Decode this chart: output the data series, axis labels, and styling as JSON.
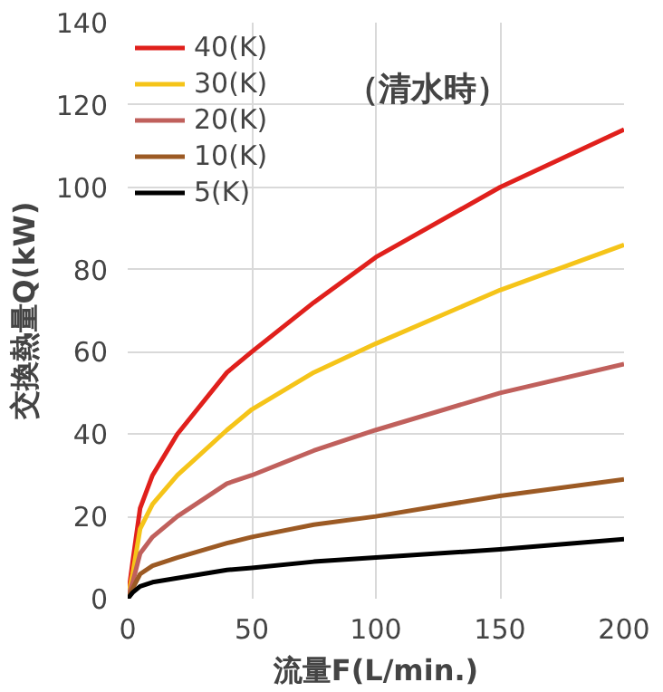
{
  "chart_data": {
    "type": "line",
    "xlabel": "流量F(L/min.)",
    "ylabel": "交換熱量Q(kW)",
    "annotations": [
      "（清水時）"
    ],
    "xlim": [
      0,
      200
    ],
    "xticks": [
      0,
      50,
      100,
      150,
      200
    ],
    "ylim": [
      0,
      140
    ],
    "yticks": [
      0,
      20,
      40,
      60,
      80,
      100,
      120,
      140
    ],
    "grid": true,
    "legend": "top left",
    "x": [
      0,
      2,
      5,
      10,
      20,
      40,
      50,
      75,
      100,
      150,
      200
    ],
    "series": [
      {
        "name": "40(K)",
        "color": "#e0201c",
        "values": [
          0,
          9,
          22,
          30,
          40,
          55,
          60,
          72,
          83,
          100,
          114
        ]
      },
      {
        "name": "30(K)",
        "color": "#f5c419",
        "values": [
          0,
          6,
          17,
          23,
          30,
          41,
          46,
          55,
          62,
          75,
          86
        ]
      },
      {
        "name": "20(K)",
        "color": "#c0605c",
        "values": [
          0,
          4,
          11,
          15,
          20,
          28,
          30,
          36,
          41,
          50,
          57
        ]
      },
      {
        "name": "10(K)",
        "color": "#9c5a24",
        "values": [
          0,
          2.5,
          6,
          8,
          10,
          13.5,
          15,
          18,
          20,
          25,
          29
        ]
      },
      {
        "name": "5(K)",
        "color": "#000000",
        "values": [
          0,
          1.5,
          3,
          4,
          5,
          7,
          7.5,
          9,
          10,
          12,
          14.5
        ]
      }
    ]
  }
}
